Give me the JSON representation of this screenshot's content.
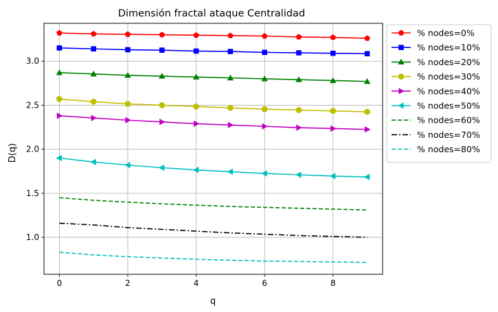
{
  "chart_data": {
    "type": "line",
    "title": "Dimensión fractal ataque Centralidad",
    "xlabel": "q",
    "ylabel": "D(q)",
    "xlim": [
      -0.45,
      9.45
    ],
    "ylim": [
      0.58,
      3.43
    ],
    "xticks": [
      0,
      2,
      4,
      6,
      8
    ],
    "yticks": [
      1.0,
      1.5,
      2.0,
      2.5,
      3.0
    ],
    "grid": true,
    "legend_position": "outside-right",
    "x": [
      0,
      1,
      2,
      3,
      4,
      5,
      6,
      7,
      8,
      9
    ],
    "series": [
      {
        "name": "% nodes=0%",
        "color": "#ff0000",
        "linestyle": "solid",
        "marker": "pentagon",
        "values": [
          3.32,
          3.31,
          3.305,
          3.3,
          3.295,
          3.29,
          3.285,
          3.275,
          3.27,
          3.26
        ]
      },
      {
        "name": "% nodes=10%",
        "color": "#0000ff",
        "linestyle": "solid",
        "marker": "square",
        "values": [
          3.15,
          3.14,
          3.13,
          3.125,
          3.115,
          3.11,
          3.1,
          3.095,
          3.09,
          3.085
        ]
      },
      {
        "name": "% nodes=20%",
        "color": "#008000",
        "linestyle": "solid",
        "marker": "triangle-up",
        "values": [
          2.87,
          2.855,
          2.84,
          2.83,
          2.82,
          2.81,
          2.8,
          2.79,
          2.78,
          2.77
        ]
      },
      {
        "name": "% nodes=30%",
        "color": "#bfbf00",
        "linestyle": "solid",
        "marker": "circle",
        "values": [
          2.57,
          2.54,
          2.515,
          2.5,
          2.485,
          2.47,
          2.455,
          2.445,
          2.435,
          2.425
        ]
      },
      {
        "name": "% nodes=40%",
        "color": "#bf00bf",
        "linestyle": "solid",
        "marker": "triangle-right",
        "values": [
          2.38,
          2.355,
          2.33,
          2.31,
          2.29,
          2.275,
          2.26,
          2.245,
          2.235,
          2.225
        ]
      },
      {
        "name": "% nodes=50%",
        "color": "#00bfbf",
        "linestyle": "solid",
        "marker": "triangle-left",
        "values": [
          1.9,
          1.855,
          1.82,
          1.79,
          1.765,
          1.745,
          1.725,
          1.71,
          1.695,
          1.685
        ]
      },
      {
        "name": "% nodes=60%",
        "color": "#008000",
        "linestyle": "dashed",
        "marker": "none",
        "values": [
          1.45,
          1.42,
          1.4,
          1.38,
          1.365,
          1.35,
          1.34,
          1.33,
          1.32,
          1.31
        ]
      },
      {
        "name": "% nodes=70%",
        "color": "#000000",
        "linestyle": "dashdot",
        "marker": "none",
        "values": [
          1.16,
          1.14,
          1.11,
          1.09,
          1.07,
          1.05,
          1.035,
          1.02,
          1.01,
          1.0
        ]
      },
      {
        "name": "% nodes=80%",
        "color": "#00bfbf",
        "linestyle": "dashed",
        "marker": "none",
        "values": [
          0.83,
          0.8,
          0.78,
          0.765,
          0.75,
          0.74,
          0.73,
          0.725,
          0.72,
          0.715
        ]
      }
    ]
  }
}
